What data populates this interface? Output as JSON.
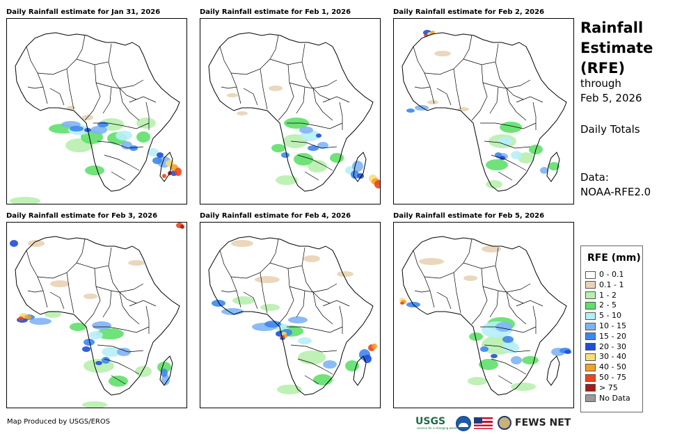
{
  "panels": [
    {
      "title": "Daily Rainfall estimate for Jan 31, 2026",
      "scheme": 0
    },
    {
      "title": "Daily Rainfall estimate for Feb 1, 2026",
      "scheme": 1
    },
    {
      "title": "Daily Rainfall estimate for Feb 2, 2026",
      "scheme": 2
    },
    {
      "title": "Daily Rainfall estimate for Feb 3, 2026",
      "scheme": 3
    },
    {
      "title": "Daily Rainfall estimate for Feb 4, 2026",
      "scheme": 4
    },
    {
      "title": "Daily Rainfall estimate for Feb 5, 2026",
      "scheme": 5
    }
  ],
  "side": {
    "title_line1": "Rainfall",
    "title_line2": "Estimate",
    "title_line3": "(RFE)",
    "through": "through",
    "through_date": "Feb 5, 2026",
    "totals": "Daily Totals",
    "data_label": "Data:",
    "data_source": "NOAA-RFE2.0"
  },
  "legend": {
    "title": "RFE (mm)",
    "items": [
      {
        "label": "0 - 0.1",
        "color": "#ffffff"
      },
      {
        "label": "0.1 - 1",
        "color": "#e8d3b5"
      },
      {
        "label": "1 - 2",
        "color": "#b8f0ae"
      },
      {
        "label": "2 - 5",
        "color": "#5fe06a"
      },
      {
        "label": "5 - 10",
        "color": "#b6eef8"
      },
      {
        "label": "10 - 15",
        "color": "#7fb4f4"
      },
      {
        "label": "15 - 20",
        "color": "#3d86ef"
      },
      {
        "label": "20 - 30",
        "color": "#1f4fd8"
      },
      {
        "label": "30 - 40",
        "color": "#f7de7c"
      },
      {
        "label": "40 - 50",
        "color": "#f2a12a"
      },
      {
        "label": "50 - 75",
        "color": "#f0441a"
      },
      {
        "label": "> 75",
        "color": "#a61a1a"
      },
      {
        "label": "No Data",
        "color": "#999999"
      }
    ]
  },
  "footer": {
    "credit": "Map Produced by USGS/EROS"
  },
  "logos": {
    "usgs": "USGS",
    "usgs_tagline": "science for a changing world",
    "fews": "FEWS NET"
  }
}
